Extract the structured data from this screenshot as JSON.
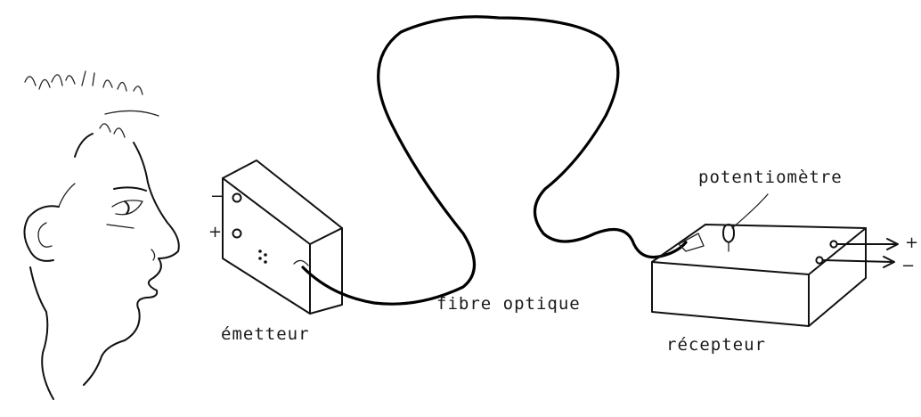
{
  "labels": {
    "emitter": "émetteur",
    "fiber": "fibre optique",
    "potentiometer": "potentiomètre",
    "receiver": "récepteur"
  },
  "emitter_signs": {
    "minus": "−",
    "plus": "+"
  },
  "receiver_outputs": {
    "plus": "+",
    "minus": "−"
  }
}
